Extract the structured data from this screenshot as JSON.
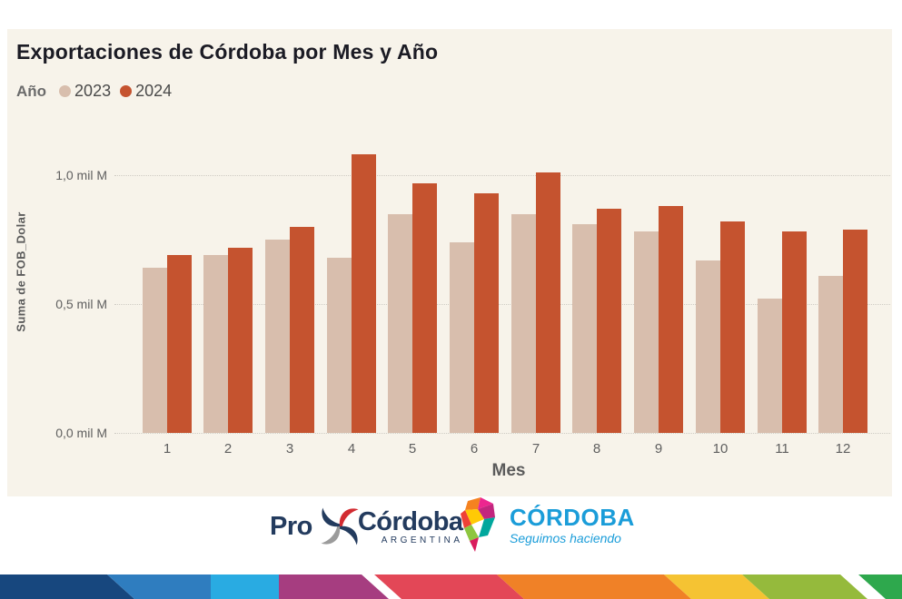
{
  "title": "Exportaciones de Córdoba por Mes y Año",
  "legend": {
    "title": "Año",
    "items": [
      {
        "label": "2023",
        "color": "#d8bead"
      },
      {
        "label": "2024",
        "color": "#c5532f"
      }
    ]
  },
  "chart_data": {
    "type": "bar",
    "title": "Exportaciones de Córdoba por Mes y Año",
    "xlabel": "Mes",
    "ylabel": "Suma de FOB_Dolar",
    "categories": [
      "1",
      "2",
      "3",
      "4",
      "5",
      "6",
      "7",
      "8",
      "9",
      "10",
      "11",
      "12"
    ],
    "series": [
      {
        "name": "2023",
        "color": "#d8bead",
        "values": [
          0.64,
          0.69,
          0.75,
          0.68,
          0.85,
          0.74,
          0.85,
          0.81,
          0.78,
          0.67,
          0.52,
          0.61
        ]
      },
      {
        "name": "2024",
        "color": "#c5532f",
        "values": [
          0.69,
          0.72,
          0.8,
          1.08,
          0.97,
          0.93,
          1.01,
          0.87,
          0.88,
          0.82,
          0.78,
          0.79
        ]
      }
    ],
    "yticks": [
      {
        "value": 0.0,
        "label": "0,0 mil M"
      },
      {
        "value": 0.5,
        "label": "0,5 mil M"
      },
      {
        "value": 1.0,
        "label": "1,0 mil M"
      }
    ],
    "ylim": [
      0,
      1.12
    ],
    "grid": "dotted horizontal",
    "legend_position": "top-left"
  },
  "footer": {
    "procordoba": {
      "pro": "Pro",
      "cordoba": "Córdoba",
      "sub": "ARGENTINA"
    },
    "gov": {
      "name": "CÓRDOBA",
      "tagline": "Seguimos haciendo"
    }
  },
  "colors": {
    "panel_background": "#f7f3ea",
    "title_text": "#1b1b24",
    "axis_text": "#5f5f5f",
    "gridline": "#cfccc4",
    "logo_navy": "#233b5e",
    "logo_red": "#d22b31",
    "logo_gray": "#9b9b9b",
    "gov_blue": "#1b9dd9",
    "stripe": [
      "#17477e",
      "#2f7dbf",
      "#29abe2",
      "#a63d80",
      "#e34757",
      "#f08127",
      "#f5c333",
      "#95ba3c",
      "#2ea84d"
    ],
    "map_facets": [
      "#f58220",
      "#ec268f",
      "#c2267e",
      "#ffca05",
      "#ef4136",
      "#8dc63f",
      "#00a79d",
      "#d91c5c"
    ]
  }
}
